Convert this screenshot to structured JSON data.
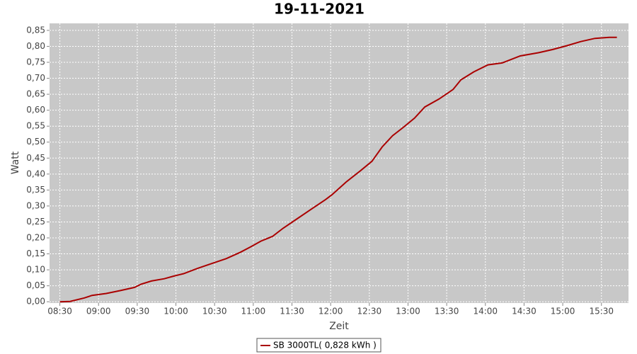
{
  "chart_data": {
    "type": "line",
    "title": "19-11-2021",
    "x_label": "Zeit",
    "y_label": "Watt",
    "x": [
      "08:30",
      "08:38",
      "08:49",
      "08:55",
      "09:06",
      "09:17",
      "09:28",
      "09:33",
      "09:41",
      "09:51",
      "09:58",
      "10:06",
      "10:17",
      "10:28",
      "10:39",
      "10:50",
      "10:58",
      "11:06",
      "11:15",
      "11:23",
      "11:34",
      "11:45",
      "11:56",
      "12:01",
      "12:12",
      "12:23",
      "12:32",
      "12:40",
      "12:48",
      "12:56",
      "13:05",
      "13:13",
      "13:24",
      "13:35",
      "13:41",
      "13:51",
      "14:02",
      "14:13",
      "14:27",
      "14:41",
      "14:52",
      "15:03",
      "15:14",
      "15:25",
      "15:36",
      "15:42"
    ],
    "series": [
      {
        "name": "SB 3000TL( 0,828 kWh )",
        "color": "#aa0000",
        "values": [
          0,
          0.001,
          0.012,
          0.02,
          0.026,
          0.035,
          0.045,
          0.055,
          0.065,
          0.072,
          0.08,
          0.088,
          0.105,
          0.12,
          0.135,
          0.155,
          0.172,
          0.19,
          0.205,
          0.23,
          0.26,
          0.29,
          0.32,
          0.335,
          0.375,
          0.41,
          0.44,
          0.485,
          0.52,
          0.545,
          0.575,
          0.61,
          0.635,
          0.665,
          0.695,
          0.72,
          0.742,
          0.748,
          0.77,
          0.78,
          0.79,
          0.802,
          0.815,
          0.825,
          0.828,
          0.828
        ]
      }
    ],
    "xlim": [
      "08:22",
      "15:51"
    ],
    "xticks": [
      "08:30",
      "09:00",
      "09:30",
      "10:00",
      "10:30",
      "11:00",
      "11:30",
      "12:00",
      "12:30",
      "13:00",
      "13:30",
      "14:00",
      "14:30",
      "15:00",
      "15:30"
    ],
    "ylim": [
      -0.004,
      0.872
    ],
    "yticks": [
      {
        "value": 0,
        "label": "0,00"
      },
      {
        "value": 0.05,
        "label": "0,05"
      },
      {
        "value": 0.1,
        "label": "0,10"
      },
      {
        "value": 0.15,
        "label": "0,15"
      },
      {
        "value": 0.2,
        "label": "0,20"
      },
      {
        "value": 0.25,
        "label": "0,25"
      },
      {
        "value": 0.3,
        "label": "0,30"
      },
      {
        "value": 0.35,
        "label": "0,35"
      },
      {
        "value": 0.4,
        "label": "0,40"
      },
      {
        "value": 0.45,
        "label": "0,45"
      },
      {
        "value": 0.5,
        "label": "0,50"
      },
      {
        "value": 0.55,
        "label": "0,55"
      },
      {
        "value": 0.6,
        "label": "0,60"
      },
      {
        "value": 0.65,
        "label": "0,65"
      },
      {
        "value": 0.7,
        "label": "0,70"
      },
      {
        "value": 0.75,
        "label": "0,75"
      },
      {
        "value": 0.8,
        "label": "0,80"
      },
      {
        "value": 0.85,
        "label": "0,85"
      }
    ],
    "grid": true
  }
}
